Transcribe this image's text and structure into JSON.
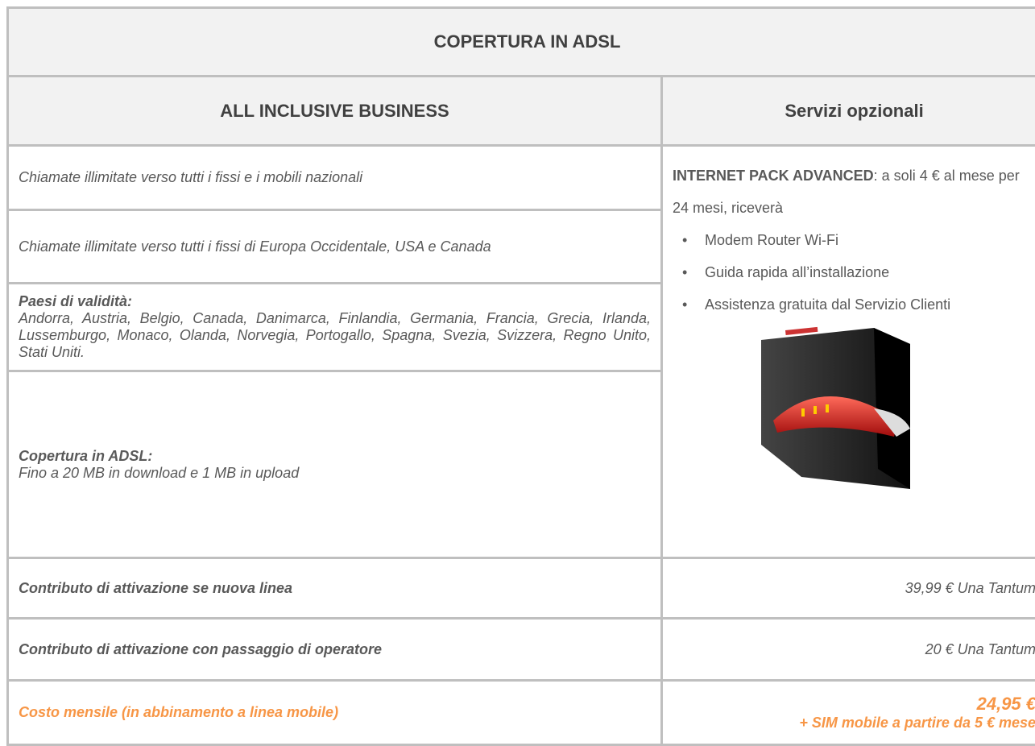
{
  "title": "COPERTURA IN ADSL",
  "header": {
    "left": "ALL INCLUSIVE BUSINESS",
    "right": "Servizi opzionali"
  },
  "features": [
    {
      "text": "Chiamate illimitate verso tutti i fissi e i mobili nazionali"
    },
    {
      "text": "Chiamate illimitate verso tutti i fissi di Europa Occidentale, USA e Canada"
    },
    {
      "heading": "Paesi di validità:",
      "text": "Andorra, Austria, Belgio, Canada, Danimarca, Finlandia, Germania, Francia, Grecia, Irlanda, Lussemburgo, Monaco, Olanda, Norvegia, Portogallo, Spagna, Svezia, Svizzera, Regno Unito, Stati Uniti."
    },
    {
      "heading": "Copertura in ADSL:",
      "text": "Fino a 20 MB in download e 1 MB in upload"
    }
  ],
  "optional": {
    "name": "INTERNET PACK ADVANCED",
    "text": ": a soli 4 € al mese per 24 mesi, riceverà",
    "bullets": [
      "Modem Router Wi-Fi",
      "Guida rapida all’installazione",
      "Assistenza gratuita dal Servizio Clienti"
    ]
  },
  "pricing": [
    {
      "label": "Contributo di attivazione se nuova linea",
      "value": "39,99 € Una Tantum"
    },
    {
      "label": "Contributo di attivazione con passaggio di operatore",
      "value": "20 € Una Tantum"
    },
    {
      "label": "Costo mensile (in abbinamento a linea mobile)",
      "value": "24,95 €",
      "note": "+ SIM mobile a partire da 5 € mese"
    }
  ]
}
